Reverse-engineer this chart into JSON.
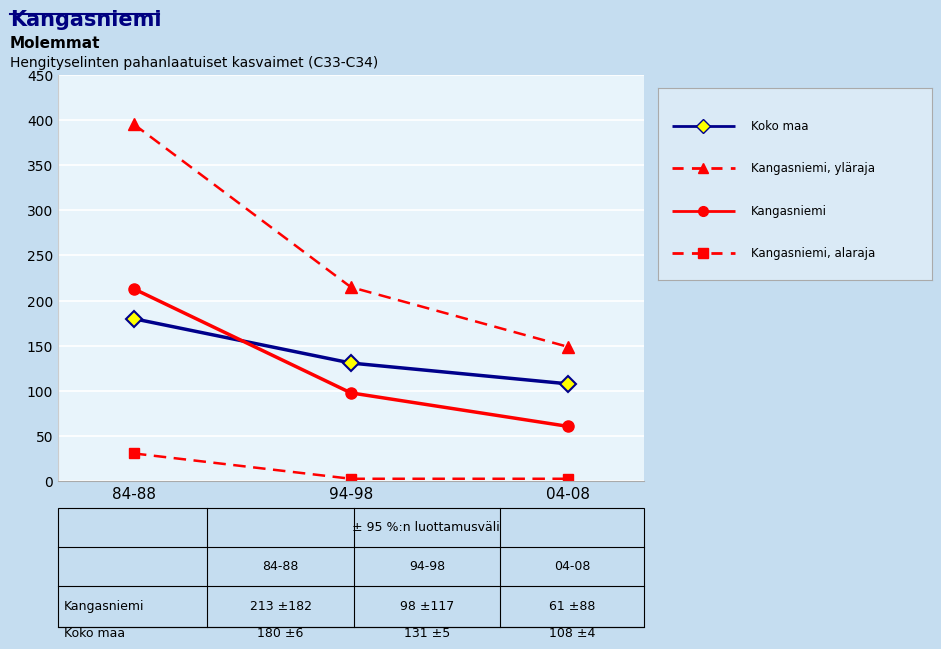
{
  "title": "Kangasniemi",
  "subtitle1": "Molemmat",
  "subtitle2": "Hengityselinten pahanlaatuiset kasvaimet (C33-C34)",
  "x_labels": [
    "84-88",
    "94-98",
    "04-08"
  ],
  "x_positions": [
    0,
    1,
    2
  ],
  "koko_maa": [
    180,
    131,
    108
  ],
  "kangasniemi": [
    213,
    98,
    61
  ],
  "kangasniemi_ylaraja": [
    395,
    215,
    149
  ],
  "kangasniemi_alaraja": [
    31,
    3,
    3
  ],
  "ylim": [
    0,
    450
  ],
  "yticks": [
    0,
    50,
    100,
    150,
    200,
    250,
    300,
    350,
    400,
    450
  ],
  "color_navy": "#00008B",
  "color_red": "#FF0000",
  "legend_bg": "#daeaf6",
  "plot_bg": "#e8f4fb",
  "outer_bg": "#c5ddf0",
  "table_header": "± 95 %:n luottamusväli",
  "table_col_headers": [
    "84-88",
    "94-98",
    "04-08"
  ],
  "table_rows": [
    [
      "Kangasniemi",
      "213 ±182",
      "98 ±117",
      "61 ±88"
    ],
    [
      "Koko maa",
      "180 ±6",
      "131 ±5",
      "108 ±4"
    ]
  ],
  "legend_labels": [
    "Koko maa",
    "Kangasniemi, yläraja",
    "Kangasniemi",
    "Kangasniemi, alaraja"
  ]
}
